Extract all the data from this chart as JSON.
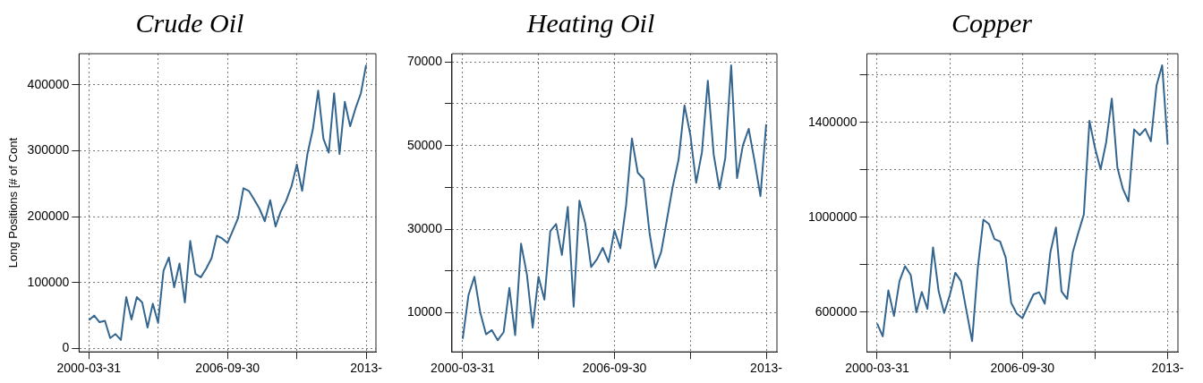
{
  "chart_data": [
    {
      "type": "line",
      "title": "Crude Oil",
      "ylabel": "Long Positions [# of Cont",
      "x": [
        "2000-03-31",
        "2000-06-30",
        "2000-09-30",
        "2000-12-31",
        "2001-03-31",
        "2001-06-30",
        "2001-09-30",
        "2001-12-31",
        "2002-03-31",
        "2002-06-30",
        "2002-09-30",
        "2002-12-31",
        "2003-03-31",
        "2003-06-30",
        "2003-09-30",
        "2003-12-31",
        "2004-03-31",
        "2004-06-30",
        "2004-09-30",
        "2004-12-31",
        "2005-03-31",
        "2005-06-30",
        "2005-09-30",
        "2005-12-31",
        "2006-03-31",
        "2006-06-30",
        "2006-09-30",
        "2006-12-31",
        "2007-03-31",
        "2007-06-30",
        "2007-09-30",
        "2007-12-31",
        "2008-03-31",
        "2008-06-30",
        "2008-09-30",
        "2008-12-31",
        "2009-03-31",
        "2009-06-30",
        "2009-09-30",
        "2009-12-31",
        "2010-03-31",
        "2010-06-30",
        "2010-09-30",
        "2010-12-31",
        "2011-03-31",
        "2011-06-30",
        "2011-09-30",
        "2011-12-31",
        "2012-03-31",
        "2012-06-30",
        "2012-09-30",
        "2012-12-31",
        "2013-03-31"
      ],
      "series": [
        {
          "color": "#33658f",
          "values": [
            43000,
            50000,
            40000,
            42000,
            16000,
            22000,
            13000,
            78000,
            44000,
            78000,
            70000,
            32000,
            68000,
            39000,
            118000,
            138000,
            93000,
            129000,
            70000,
            163000,
            113000,
            108000,
            121000,
            137000,
            171000,
            167000,
            160000,
            179000,
            198000,
            243000,
            239000,
            226000,
            212000,
            193000,
            225000,
            185000,
            208000,
            224000,
            246000,
            279000,
            239000,
            295000,
            332000,
            391000,
            318000,
            297000,
            387000,
            295000,
            374000,
            337000,
            364000,
            387000,
            430000
          ]
        }
      ],
      "xlim": [
        "1999-10-15",
        "2013-09-15"
      ],
      "xticks": [
        {
          "value": "2000-03-31",
          "label": "2000-03-31"
        },
        {
          "value": "2003-06-30",
          "label": null
        },
        {
          "value": "2006-09-30",
          "label": "2006-09-30"
        },
        {
          "value": "2009-12-31",
          "label": null
        },
        {
          "value": "2013-03-31",
          "label": "2013-"
        }
      ],
      "ylim": [
        -5000,
        447000
      ],
      "yticks": [
        0,
        100000,
        200000,
        300000,
        400000
      ],
      "grid": true,
      "legend": false
    },
    {
      "type": "line",
      "title": "Heating Oil",
      "x": [
        "2000-03-31",
        "2000-06-30",
        "2000-09-30",
        "2000-12-31",
        "2001-03-31",
        "2001-06-30",
        "2001-09-30",
        "2001-12-31",
        "2002-03-31",
        "2002-06-30",
        "2002-09-30",
        "2002-12-31",
        "2003-03-31",
        "2003-06-30",
        "2003-09-30",
        "2003-12-31",
        "2004-03-31",
        "2004-06-30",
        "2004-09-30",
        "2004-12-31",
        "2005-03-31",
        "2005-06-30",
        "2005-09-30",
        "2005-12-31",
        "2006-03-31",
        "2006-06-30",
        "2006-09-30",
        "2006-12-31",
        "2007-03-31",
        "2007-06-30",
        "2007-09-30",
        "2007-12-31",
        "2008-03-31",
        "2008-06-30",
        "2008-09-30",
        "2008-12-31",
        "2009-03-31",
        "2009-06-30",
        "2009-09-30",
        "2009-12-31",
        "2010-03-31",
        "2010-06-30",
        "2010-09-30",
        "2010-12-31",
        "2011-03-31",
        "2011-06-30",
        "2011-09-30",
        "2011-12-31",
        "2012-03-31",
        "2012-06-30",
        "2012-09-30",
        "2012-12-31",
        "2013-03-31"
      ],
      "series": [
        {
          "color": "#33658f",
          "values": [
            3700,
            14200,
            18600,
            10000,
            4800,
            5800,
            3400,
            5300,
            15900,
            4600,
            26500,
            19100,
            6400,
            18600,
            13100,
            29500,
            31200,
            23800,
            35300,
            11400,
            36800,
            31400,
            20900,
            22800,
            25500,
            22100,
            29700,
            25400,
            35700,
            51700,
            43500,
            42000,
            29200,
            20700,
            24500,
            32400,
            40300,
            46700,
            59600,
            52500,
            41100,
            48400,
            65500,
            47800,
            39600,
            47000,
            69200,
            42200,
            50000,
            54000,
            46300,
            37900,
            55100
          ]
        }
      ],
      "xlim": [
        "1999-10-15",
        "2013-09-15"
      ],
      "xticks": [
        {
          "value": "2000-03-31",
          "label": "2000-03-31"
        },
        {
          "value": "2003-06-30",
          "label": null
        },
        {
          "value": "2006-09-30",
          "label": "2006-09-30"
        },
        {
          "value": "2009-12-31",
          "label": null
        },
        {
          "value": "2013-03-31",
          "label": "2013-"
        }
      ],
      "ylim": [
        600,
        72000
      ],
      "yticks": [
        10000,
        {
          "value": 20000,
          "label": null
        },
        30000,
        {
          "value": 40000,
          "label": null
        },
        50000,
        {
          "value": 60000,
          "label": null
        },
        70000
      ],
      "grid": true,
      "legend": false
    },
    {
      "type": "line",
      "title": "Copper",
      "x": [
        "2000-03-31",
        "2000-06-30",
        "2000-09-30",
        "2000-12-31",
        "2001-03-31",
        "2001-06-30",
        "2001-09-30",
        "2001-12-31",
        "2002-03-31",
        "2002-06-30",
        "2002-09-30",
        "2002-12-31",
        "2003-03-31",
        "2003-06-30",
        "2003-09-30",
        "2003-12-31",
        "2004-03-31",
        "2004-06-30",
        "2004-09-30",
        "2004-12-31",
        "2005-03-31",
        "2005-06-30",
        "2005-09-30",
        "2005-12-31",
        "2006-03-31",
        "2006-06-30",
        "2006-09-30",
        "2006-12-31",
        "2007-03-31",
        "2007-06-30",
        "2007-09-30",
        "2007-12-31",
        "2008-03-31",
        "2008-06-30",
        "2008-09-30",
        "2008-12-31",
        "2009-03-31",
        "2009-06-30",
        "2009-09-30",
        "2009-12-31",
        "2010-03-31",
        "2010-06-30",
        "2010-09-30",
        "2010-12-31",
        "2011-03-31",
        "2011-06-30",
        "2011-09-30",
        "2011-12-31",
        "2012-03-31",
        "2012-06-30",
        "2012-09-30",
        "2012-12-31",
        "2013-03-31"
      ],
      "series": [
        {
          "color": "#33658f",
          "values": [
            552000,
            498000,
            692000,
            584000,
            731000,
            794000,
            757000,
            600000,
            685000,
            614000,
            873000,
            688000,
            597000,
            671000,
            766000,
            731000,
            604000,
            478000,
            785000,
            990000,
            972000,
            908000,
            898000,
            830000,
            639000,
            594000,
            575000,
            626000,
            675000,
            684000,
            636000,
            852000,
            957000,
            688000,
            656000,
            852000,
            934000,
            1012000,
            1406000,
            1290000,
            1202000,
            1316000,
            1500000,
            1208000,
            1119000,
            1067000,
            1370000,
            1346000,
            1372000,
            1320000,
            1555000,
            1640000,
            1307000
          ]
        }
      ],
      "xlim": [
        "1999-10-15",
        "2013-09-15"
      ],
      "xticks": [
        {
          "value": "2000-03-31",
          "label": "2000-03-31"
        },
        {
          "value": "2003-06-30",
          "label": null
        },
        {
          "value": "2006-09-30",
          "label": "2006-09-30"
        },
        {
          "value": "2009-12-31",
          "label": null
        },
        {
          "value": "2013-03-31",
          "label": "2013-"
        }
      ],
      "ylim": [
        433000,
        1689000
      ],
      "yticks": [
        600000,
        {
          "value": 800000,
          "label": null
        },
        1000000,
        {
          "value": 1200000,
          "label": null
        },
        1400000,
        {
          "value": 1600000,
          "label": null
        }
      ],
      "grid": true,
      "legend": false
    }
  ]
}
